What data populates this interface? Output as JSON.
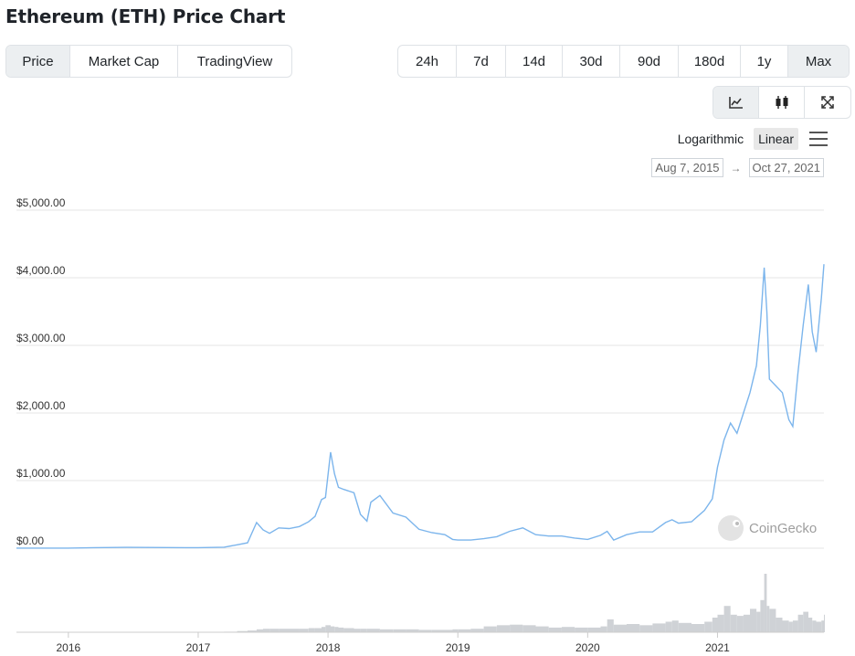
{
  "page": {
    "title": "Ethereum (ETH) Price Chart"
  },
  "metric_tabs": [
    {
      "label": "Price",
      "active": true
    },
    {
      "label": "Market Cap",
      "active": false
    },
    {
      "label": "TradingView",
      "active": false
    }
  ],
  "range_tabs": [
    {
      "label": "24h",
      "active": false
    },
    {
      "label": "7d",
      "active": false
    },
    {
      "label": "14d",
      "active": false
    },
    {
      "label": "30d",
      "active": false
    },
    {
      "label": "90d",
      "active": false
    },
    {
      "label": "180d",
      "active": false
    },
    {
      "label": "1y",
      "active": false
    },
    {
      "label": "Max",
      "active": true
    }
  ],
  "chart_type_buttons": [
    {
      "icon": "line-chart-icon",
      "active": true
    },
    {
      "icon": "candlestick-icon",
      "active": false
    },
    {
      "icon": "fullscreen-icon",
      "active": false
    }
  ],
  "scale": {
    "log_label": "Logarithmic",
    "linear_label": "Linear",
    "selected": "Linear"
  },
  "date_range": {
    "from": "Aug 7, 2015",
    "arrow": "→",
    "to": "Oct 27, 2021"
  },
  "watermark": {
    "text": "CoinGecko"
  },
  "colors": {
    "line": "#7cb5ec",
    "volume": "#cfd2d6",
    "grid": "#e6e6e6",
    "active_tab": "#eceff1"
  },
  "chart_data": {
    "type": "line",
    "title": "",
    "xlabel": "",
    "ylabel": "",
    "ylim": [
      0,
      5000
    ],
    "y_ticks": [
      "$0.00",
      "$1,000.00",
      "$2,000.00",
      "$3,000.00",
      "$4,000.00",
      "$5,000.00"
    ],
    "y_tick_values": [
      0,
      1000,
      2000,
      3000,
      4000,
      5000
    ],
    "x_ticks": [
      "2016",
      "2017",
      "2018",
      "2019",
      "2020",
      "2021"
    ],
    "x_tick_years": [
      2016,
      2017,
      2018,
      2019,
      2020,
      2021
    ],
    "xlim": [
      2015.6,
      2021.82
    ],
    "grid": true,
    "legend": "none",
    "series": [
      {
        "values_x_year": [
          2015.6,
          2015.9,
          2016.0,
          2016.2,
          2016.45,
          2016.6,
          2016.9,
          2017.0,
          2017.2,
          2017.3,
          2017.38,
          2017.45,
          2017.5,
          2017.55,
          2017.62,
          2017.7,
          2017.78,
          2017.85,
          2017.9,
          2017.95,
          2017.98,
          2018.02,
          2018.05,
          2018.08,
          2018.12,
          2018.2,
          2018.25,
          2018.3,
          2018.33,
          2018.4,
          2018.5,
          2018.6,
          2018.7,
          2018.8,
          2018.9,
          2018.96,
          2019.0,
          2019.1,
          2019.2,
          2019.3,
          2019.4,
          2019.5,
          2019.6,
          2019.7,
          2019.8,
          2019.9,
          2020.0,
          2020.1,
          2020.15,
          2020.2,
          2020.3,
          2020.4,
          2020.5,
          2020.6,
          2020.65,
          2020.7,
          2020.8,
          2020.9,
          2020.96,
          2021.0,
          2021.05,
          2021.1,
          2021.15,
          2021.2,
          2021.25,
          2021.3,
          2021.33,
          2021.36,
          2021.38,
          2021.4,
          2021.45,
          2021.5,
          2021.55,
          2021.58,
          2021.62,
          2021.66,
          2021.7,
          2021.73,
          2021.76,
          2021.8,
          2021.82
        ],
        "values_y": [
          1,
          1,
          1,
          8,
          12,
          11,
          8,
          8,
          15,
          50,
          80,
          380,
          270,
          220,
          300,
          290,
          320,
          390,
          470,
          720,
          750,
          1420,
          1100,
          900,
          870,
          820,
          500,
          400,
          680,
          780,
          520,
          460,
          280,
          230,
          200,
          130,
          120,
          120,
          140,
          170,
          250,
          300,
          200,
          180,
          180,
          150,
          130,
          190,
          250,
          120,
          200,
          240,
          240,
          380,
          420,
          370,
          390,
          560,
          730,
          1200,
          1600,
          1850,
          1700,
          2000,
          2300,
          2700,
          3300,
          4150,
          3500,
          2500,
          2400,
          2300,
          1900,
          1800,
          2600,
          3300,
          3900,
          3200,
          2900,
          3700,
          4200
        ]
      }
    ],
    "volume_relative": [
      0,
      0,
      0,
      0,
      0,
      0,
      0,
      0.005,
      0.01,
      0.02,
      0.03,
      0.05,
      0.06,
      0.06,
      0.06,
      0.06,
      0.06,
      0.07,
      0.07,
      0.09,
      0.12,
      0.1,
      0.09,
      0.08,
      0.07,
      0.06,
      0.06,
      0.06,
      0.06,
      0.05,
      0.05,
      0.05,
      0.04,
      0.04,
      0.04,
      0.05,
      0.05,
      0.06,
      0.1,
      0.12,
      0.13,
      0.12,
      0.1,
      0.08,
      0.09,
      0.08,
      0.08,
      0.1,
      0.22,
      0.13,
      0.14,
      0.12,
      0.15,
      0.18,
      0.2,
      0.16,
      0.14,
      0.18,
      0.25,
      0.3,
      0.45,
      0.3,
      0.28,
      0.3,
      0.4,
      0.35,
      0.55,
      1.0,
      0.45,
      0.4,
      0.25,
      0.2,
      0.18,
      0.2,
      0.3,
      0.35,
      0.25,
      0.2,
      0.18,
      0.2,
      0.3
    ]
  }
}
